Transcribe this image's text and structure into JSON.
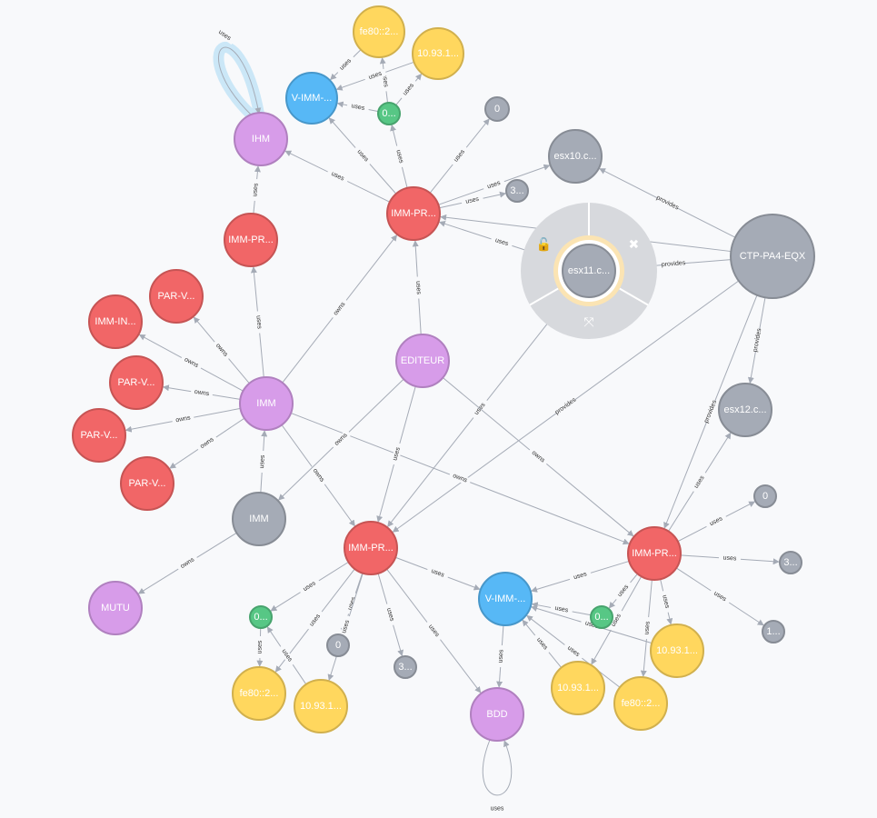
{
  "colors": {
    "red": "#f16667",
    "purple": "#d79ce9",
    "blue": "#57b8f6",
    "yellow": "#ffd75e",
    "green": "#57c785",
    "gray": "#a5abb6",
    "edge": "#a5abb6",
    "selection_halo": "#cbe7f7",
    "ring": "#d7d9dd",
    "ring_selected": "#fbe4b3"
  },
  "graph": {
    "nodes": [
      {
        "id": "fe80_top",
        "label": "fe80::2...",
        "type": "yellow"
      },
      {
        "id": "ip_top",
        "label": "10.93.1...",
        "type": "yellow"
      },
      {
        "id": "vimm_top",
        "label": "V-IMM-...",
        "type": "blue"
      },
      {
        "id": "zero_green_top",
        "label": "0...",
        "type": "green"
      },
      {
        "id": "zero_top",
        "label": "0",
        "type": "gray"
      },
      {
        "id": "ihm",
        "label": "IHM",
        "type": "purple"
      },
      {
        "id": "esx10",
        "label": "esx10.c...",
        "type": "gray"
      },
      {
        "id": "three_top",
        "label": "3...",
        "type": "gray"
      },
      {
        "id": "immpr_top",
        "label": "IMM-PR...",
        "type": "red"
      },
      {
        "id": "immpr_left",
        "label": "IMM-PR...",
        "type": "red"
      },
      {
        "id": "ctp",
        "label": "CTP-PA4-EQX",
        "type": "gray"
      },
      {
        "id": "esx11",
        "label": "esx11.c...",
        "type": "gray"
      },
      {
        "id": "parv1",
        "label": "PAR-V...",
        "type": "red"
      },
      {
        "id": "imm_in",
        "label": "IMM-IN...",
        "type": "red"
      },
      {
        "id": "parv2",
        "label": "PAR-V...",
        "type": "red"
      },
      {
        "id": "editeur",
        "label": "EDITEUR",
        "type": "purple"
      },
      {
        "id": "imm_purple",
        "label": "IMM",
        "type": "purple"
      },
      {
        "id": "parv3",
        "label": "PAR-V...",
        "type": "red"
      },
      {
        "id": "esx12",
        "label": "esx12.c...",
        "type": "gray"
      },
      {
        "id": "parv4",
        "label": "PAR-V...",
        "type": "red"
      },
      {
        "id": "imm_gray",
        "label": "IMM",
        "type": "gray"
      },
      {
        "id": "zero_right",
        "label": "0",
        "type": "gray"
      },
      {
        "id": "immpr_mid",
        "label": "IMM-PR...",
        "type": "red"
      },
      {
        "id": "immpr_right",
        "label": "IMM-PR...",
        "type": "red"
      },
      {
        "id": "three_right",
        "label": "3...",
        "type": "gray"
      },
      {
        "id": "vimm_mid",
        "label": "V-IMM-...",
        "type": "blue"
      },
      {
        "id": "mutu",
        "label": "MUTU",
        "type": "purple"
      },
      {
        "id": "zero_green_mid",
        "label": "0...",
        "type": "green"
      },
      {
        "id": "zero_green_right",
        "label": "0...",
        "type": "green"
      },
      {
        "id": "one_right",
        "label": "1...",
        "type": "gray"
      },
      {
        "id": "zero_mid",
        "label": "0",
        "type": "gray"
      },
      {
        "id": "ip_right1",
        "label": "10.93.1...",
        "type": "yellow"
      },
      {
        "id": "three_mid",
        "label": "3...",
        "type": "gray"
      },
      {
        "id": "fe80_mid",
        "label": "fe80::2...",
        "type": "yellow"
      },
      {
        "id": "ip_mid",
        "label": "10.93.1...",
        "type": "yellow"
      },
      {
        "id": "ip_right2",
        "label": "10.93.1...",
        "type": "yellow"
      },
      {
        "id": "fe80_right",
        "label": "fe80::2...",
        "type": "yellow"
      },
      {
        "id": "bdd",
        "label": "BDD",
        "type": "purple"
      }
    ],
    "edges": [
      {
        "from": "ihm",
        "to": "ihm",
        "label": "uses",
        "self": true
      },
      {
        "from": "bdd",
        "to": "bdd",
        "label": "uses",
        "self": true
      },
      {
        "from": "immpr_left",
        "to": "ihm",
        "label": "uses"
      },
      {
        "from": "imm_purple",
        "to": "immpr_left",
        "label": "uses"
      },
      {
        "from": "immpr_top",
        "to": "vimm_top",
        "label": "uses"
      },
      {
        "from": "immpr_top",
        "to": "zero_green_top",
        "label": "uses"
      },
      {
        "from": "immpr_top",
        "to": "zero_top",
        "label": "uses"
      },
      {
        "from": "immpr_top",
        "to": "three_top",
        "label": "uses"
      },
      {
        "from": "immpr_top",
        "to": "esx10",
        "label": "uses"
      },
      {
        "from": "immpr_top",
        "to": "ihm",
        "label": "uses"
      },
      {
        "from": "zero_green_top",
        "to": "vimm_top",
        "label": "uses"
      },
      {
        "from": "zero_green_top",
        "to": "fe80_top",
        "label": "uses"
      },
      {
        "from": "zero_green_top",
        "to": "ip_top",
        "label": "uses"
      },
      {
        "from": "fe80_top",
        "to": "vimm_top",
        "label": "uses"
      },
      {
        "from": "ip_top",
        "to": "vimm_top",
        "label": "uses"
      },
      {
        "from": "ctp",
        "to": "esx10",
        "label": "provides"
      },
      {
        "from": "ctp",
        "to": "esx11",
        "label": "provides"
      },
      {
        "from": "ctp",
        "to": "esx12",
        "label": "provides"
      },
      {
        "from": "ctp",
        "to": "immpr_top",
        "label": "provides"
      },
      {
        "from": "ctp",
        "to": "immpr_mid",
        "label": "provides"
      },
      {
        "from": "ctp",
        "to": "immpr_right",
        "label": "provides"
      },
      {
        "from": "esx11",
        "to": "immpr_top",
        "label": "uses"
      },
      {
        "from": "esx11",
        "to": "immpr_mid",
        "label": "uses"
      },
      {
        "from": "imm_purple",
        "to": "immpr_top",
        "label": "owns"
      },
      {
        "from": "imm_purple",
        "to": "parv1",
        "label": "owns"
      },
      {
        "from": "imm_purple",
        "to": "imm_in",
        "label": "owns"
      },
      {
        "from": "imm_purple",
        "to": "parv2",
        "label": "owns"
      },
      {
        "from": "imm_purple",
        "to": "parv3",
        "label": "owns"
      },
      {
        "from": "imm_purple",
        "to": "parv4",
        "label": "owns"
      },
      {
        "from": "imm_purple",
        "to": "immpr_mid",
        "label": "owns"
      },
      {
        "from": "imm_purple",
        "to": "immpr_right",
        "label": "owns"
      },
      {
        "from": "imm_gray",
        "to": "imm_purple",
        "label": "uses"
      },
      {
        "from": "imm_gray",
        "to": "mutu",
        "label": "owns"
      },
      {
        "from": "editeur",
        "to": "immpr_top",
        "label": "uses"
      },
      {
        "from": "editeur",
        "to": "imm_gray",
        "label": "owns"
      },
      {
        "from": "editeur",
        "to": "immpr_mid",
        "label": "uses"
      },
      {
        "from": "editeur",
        "to": "immpr_right",
        "label": "owns"
      },
      {
        "from": "immpr_right",
        "to": "esx12",
        "label": "uses"
      },
      {
        "from": "immpr_right",
        "to": "zero_right",
        "label": "uses"
      },
      {
        "from": "immpr_right",
        "to": "three_right",
        "label": "uses"
      },
      {
        "from": "immpr_right",
        "to": "one_right",
        "label": "uses"
      },
      {
        "from": "immpr_right",
        "to": "vimm_mid",
        "label": "uses"
      },
      {
        "from": "immpr_right",
        "to": "zero_green_right",
        "label": "uses"
      },
      {
        "from": "immpr_right",
        "to": "ip_right1",
        "label": "uses"
      },
      {
        "from": "immpr_right",
        "to": "ip_right2",
        "label": "uses"
      },
      {
        "from": "immpr_right",
        "to": "fe80_right",
        "label": "uses"
      },
      {
        "from": "zero_green_right",
        "to": "vimm_mid",
        "label": "uses"
      },
      {
        "from": "ip_right1",
        "to": "vimm_mid",
        "label": "uses"
      },
      {
        "from": "ip_right2",
        "to": "vimm_mid",
        "label": "uses"
      },
      {
        "from": "fe80_right",
        "to": "vimm_mid",
        "label": "uses"
      },
      {
        "from": "immpr_mid",
        "to": "vimm_mid",
        "label": "uses"
      },
      {
        "from": "immpr_mid",
        "to": "zero_green_mid",
        "label": "uses"
      },
      {
        "from": "immpr_mid",
        "to": "zero_mid",
        "label": "uses"
      },
      {
        "from": "immpr_mid",
        "to": "three_mid",
        "label": "uses"
      },
      {
        "from": "immpr_mid",
        "to": "fe80_mid",
        "label": "uses"
      },
      {
        "from": "immpr_mid",
        "to": "ip_mid",
        "label": "uses"
      },
      {
        "from": "immpr_mid",
        "to": "bdd",
        "label": "uses"
      },
      {
        "from": "zero_green_mid",
        "to": "fe80_mid",
        "label": "uses"
      },
      {
        "from": "ip_mid",
        "to": "zero_green_mid",
        "label": "uses"
      },
      {
        "from": "vimm_mid",
        "to": "bdd",
        "label": "uses"
      }
    ]
  },
  "selected_node": {
    "id": "esx11",
    "menu": [
      {
        "name": "unlock-icon",
        "glyph": "🔓"
      },
      {
        "name": "close-icon",
        "glyph": "✖"
      },
      {
        "name": "expand-icon",
        "glyph": "⤧"
      }
    ]
  }
}
